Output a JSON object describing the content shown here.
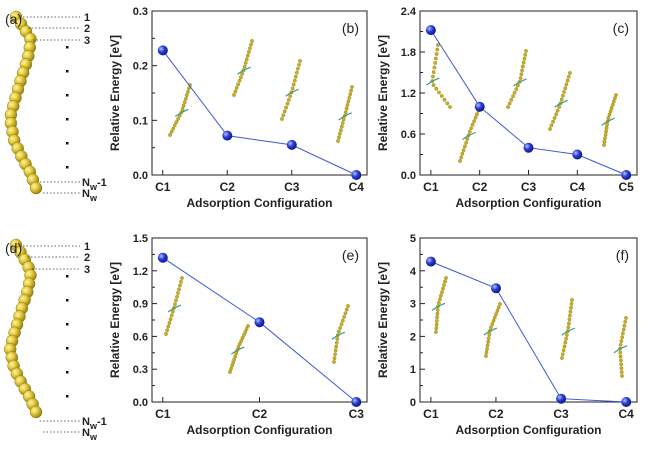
{
  "chain_panels": [
    {
      "label": "(a)",
      "index_labels": [
        "1",
        "2",
        "3"
      ],
      "end_labels": [
        "N",
        "N"
      ],
      "end_subs": [
        "w",
        "w"
      ],
      "end_suffix": [
        "-1",
        ""
      ]
    },
    {
      "label": "(d)",
      "index_labels": [
        "1",
        "2",
        "3"
      ],
      "end_labels": [
        "N",
        "N"
      ],
      "end_subs": [
        "w",
        "w"
      ],
      "end_suffix": [
        "-1",
        ""
      ]
    }
  ],
  "chart_data": [
    {
      "type": "line",
      "panel": "(b)",
      "categories": [
        "C1",
        "C2",
        "C3",
        "C4"
      ],
      "values": [
        0.228,
        0.072,
        0.055,
        0.0
      ],
      "xlabel": "Adsorption Configuration",
      "ylabel": "Relative Energy [eV]",
      "ylim": [
        0,
        0.3
      ],
      "yticks": [
        "0.0",
        "0.1",
        "0.2",
        "0.3"
      ],
      "line_color": "#3f57d9"
    },
    {
      "type": "line",
      "panel": "(c)",
      "categories": [
        "C1",
        "C2",
        "C3",
        "C4",
        "C5"
      ],
      "values": [
        2.12,
        1.0,
        0.4,
        0.3,
        0.0
      ],
      "xlabel": "Adsorption Configuration",
      "ylabel": "Relative Energy [eV]",
      "ylim": [
        0,
        2.4
      ],
      "yticks": [
        "0.0",
        "0.6",
        "1.2",
        "1.8",
        "2.4"
      ],
      "line_color": "#3f57d9"
    },
    {
      "type": "line",
      "panel": "(e)",
      "categories": [
        "C1",
        "C2",
        "C3"
      ],
      "values": [
        1.32,
        0.73,
        0.0
      ],
      "xlabel": "Adsorption Configuration",
      "ylabel": "Relative Energy [eV]",
      "ylim": [
        0,
        1.5
      ],
      "yticks": [
        "0.0",
        "0.3",
        "0.6",
        "0.9",
        "1.2",
        "1.5"
      ],
      "line_color": "#3f57d9"
    },
    {
      "type": "line",
      "panel": "(f)",
      "categories": [
        "C1",
        "C2",
        "C3",
        "C4"
      ],
      "values": [
        4.28,
        3.47,
        0.1,
        0.0
      ],
      "xlabel": "Adsorption Configuration",
      "ylabel": "Relative Energy [eV]",
      "ylim": [
        0,
        5
      ],
      "yticks": [
        "0",
        "1",
        "2",
        "3",
        "4",
        "5"
      ],
      "line_color": "#3f57d9"
    }
  ]
}
